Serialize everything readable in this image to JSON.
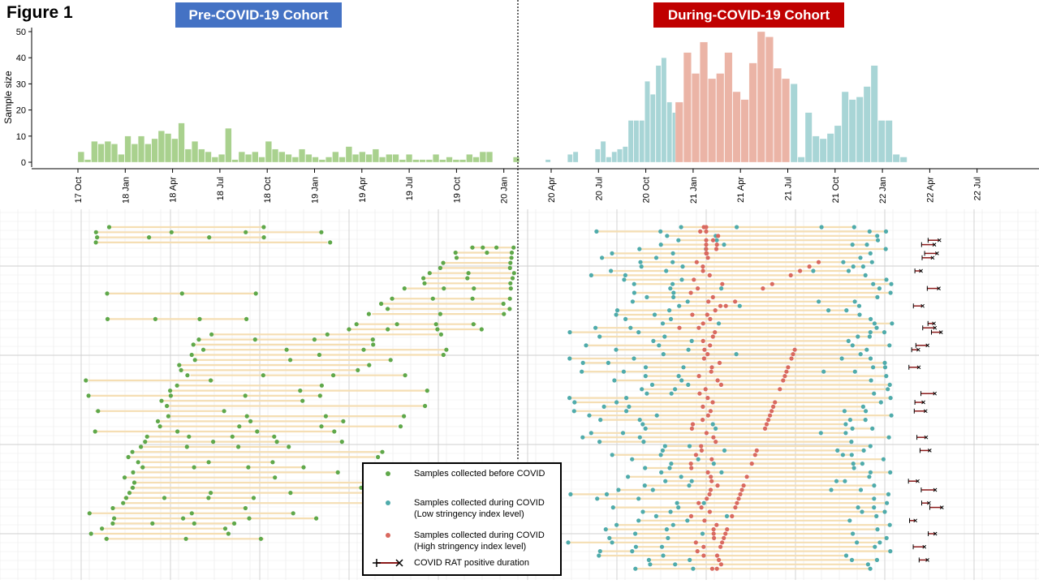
{
  "figure_label": "Figure 1",
  "cohorts": {
    "pre": "Pre-COVID-19 Cohort",
    "during": "During-COVID-19 Cohort"
  },
  "colors": {
    "pre": "#5fa84a",
    "low": "#4fabab",
    "high": "#d9695f",
    "pre_bar": "#a9d18e",
    "low_bar": "#a8d5d6",
    "high_bar": "#ebb4a6",
    "segment": "#f5deb3",
    "rat": "#8b1a1a"
  },
  "legend": {
    "items": [
      {
        "key": "pre",
        "lines": [
          "Samples collected before COVID"
        ]
      },
      {
        "key": "low",
        "lines": [
          "Samples collected during COVID",
          "(Low stringency index level)"
        ]
      },
      {
        "key": "high",
        "lines": [
          "Samples collected during COVID",
          "(High stringency index level)"
        ]
      },
      {
        "key": "rat",
        "lines": [
          "COVID RAT positive duration"
        ]
      }
    ]
  },
  "chart_data": {
    "type": "bar",
    "ylabel": "Sample size",
    "yticks": [
      0,
      10,
      20,
      30,
      40,
      50
    ],
    "ylim": [
      0,
      50
    ],
    "xticks": [
      "17 Oct",
      "18 Jan",
      "18 Apr",
      "18 Jul",
      "18 Oct",
      "19 Jan",
      "19 Apr",
      "19 Jul",
      "19 Oct",
      "20 Jan",
      "20 Apr",
      "20 Jul",
      "20 Oct",
      "21 Jan",
      "21 Apr",
      "21 Jul",
      "21 Oct",
      "22 Jan",
      "22 Apr",
      "22 Jul"
    ],
    "histogram": {
      "pre": [
        4,
        1,
        8,
        7,
        8,
        7,
        3,
        10,
        7,
        10,
        7,
        9,
        12,
        11,
        9,
        15,
        5,
        8,
        5,
        4,
        2,
        3,
        13,
        1,
        4,
        3,
        4,
        2,
        8,
        5,
        4,
        3,
        2,
        5,
        3,
        2,
        1,
        2,
        4,
        2,
        6,
        3,
        4,
        3,
        5,
        2,
        3,
        3,
        1,
        3,
        1,
        1,
        1,
        3,
        1,
        2,
        1,
        1,
        3,
        2,
        4,
        4,
        0,
        0,
        0,
        2
      ],
      "low_gap": [
        1,
        0,
        0,
        0,
        3,
        4,
        0,
        0,
        0,
        5,
        8,
        2,
        4,
        5,
        6,
        16,
        16,
        16,
        31,
        26,
        37,
        40,
        23,
        19
      ],
      "high": [
        23,
        42,
        34,
        46,
        32,
        34,
        42,
        27,
        24,
        38,
        50,
        48,
        36,
        32
      ],
      "low_after": [
        30,
        2,
        19,
        10,
        9,
        11,
        14,
        27,
        24,
        25,
        29,
        37,
        16,
        16,
        3,
        2
      ]
    },
    "series": [
      {
        "name": "Samples collected before COVID"
      },
      {
        "name": "Samples collected during COVID (Low stringency index level)"
      },
      {
        "name": "Samples collected during COVID (High stringency index level)"
      },
      {
        "name": "COVID RAT positive duration"
      }
    ],
    "cohort_split_date": "20 Jan"
  }
}
